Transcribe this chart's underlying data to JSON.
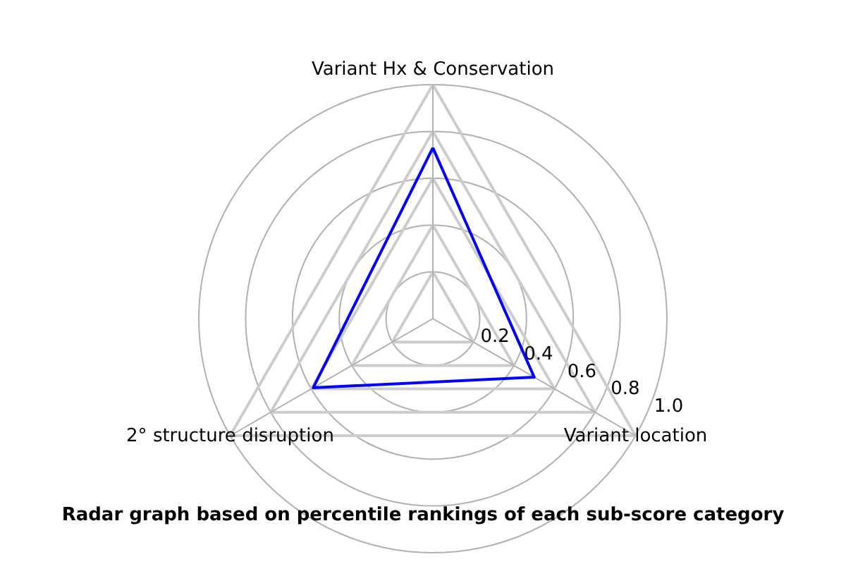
{
  "chart_data": {
    "type": "radar",
    "title": "Radar graph based on percentile rankings of each sub-score category",
    "categories": [
      "Variant Hx & Conservation",
      "Variant location",
      "2° structure disruption"
    ],
    "series": [
      {
        "color": "#0000ff",
        "values": [
          0.73,
          0.5,
          0.59
        ]
      }
    ],
    "ylim": [
      0,
      1
    ],
    "yticks": [
      0.2,
      0.4,
      0.6,
      0.8,
      {
        "value": 1,
        "label": "1.0"
      }
    ],
    "grid": true
  }
}
